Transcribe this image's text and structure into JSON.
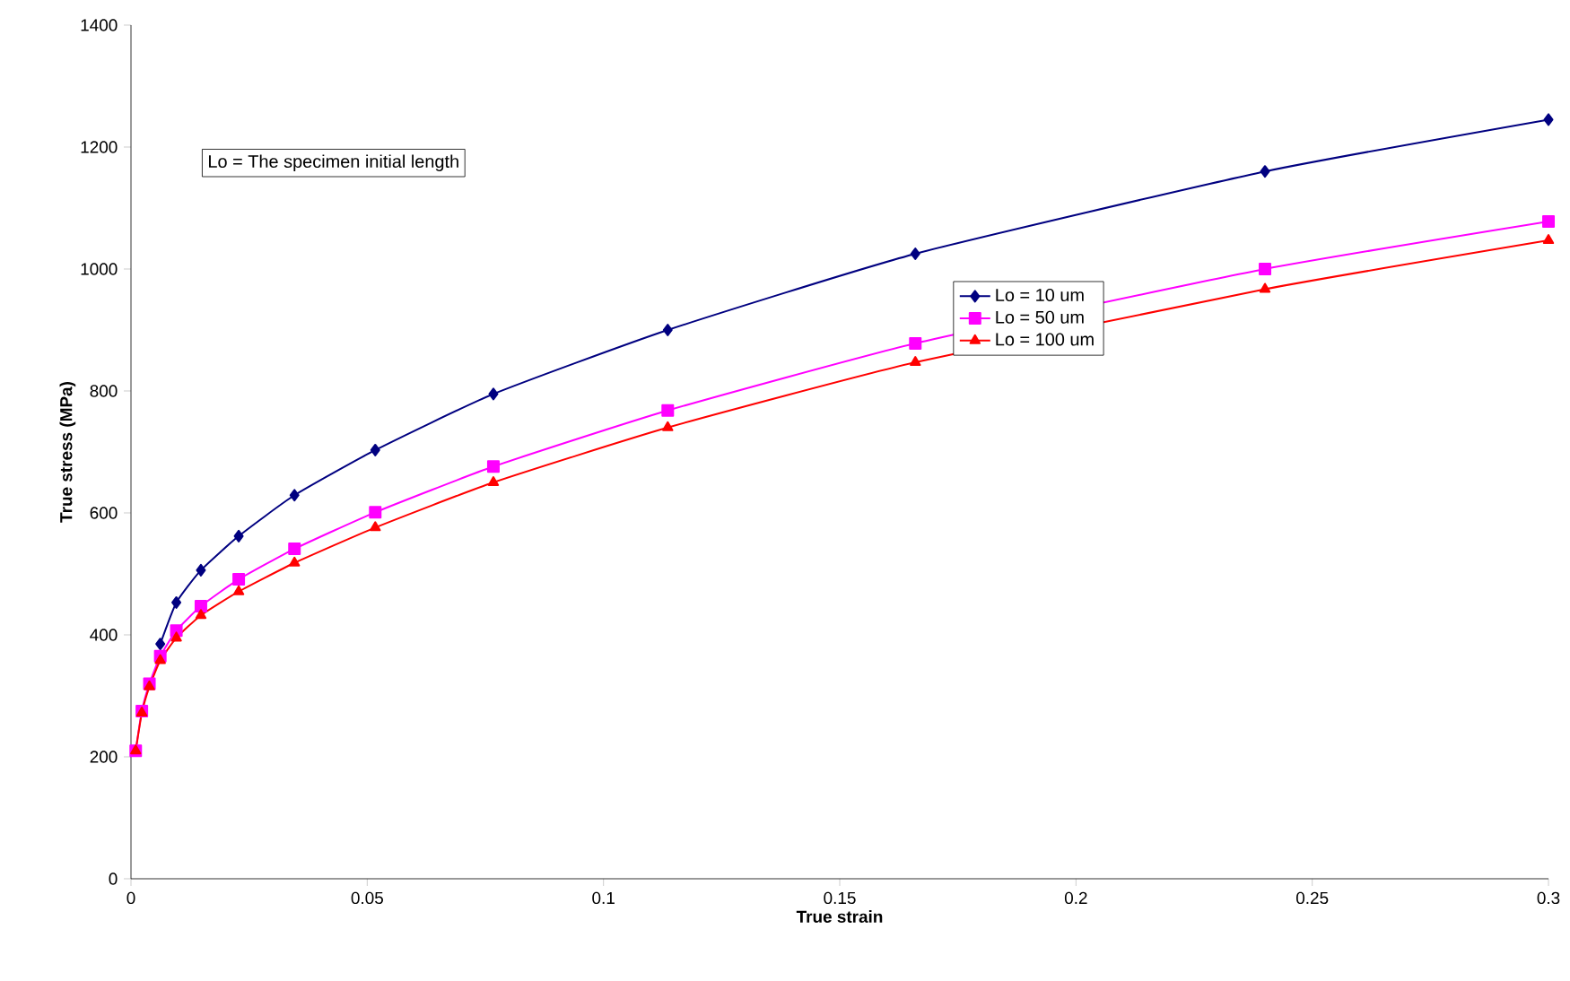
{
  "chart_data": {
    "type": "line",
    "xlabel": "True strain",
    "ylabel": "True stress (MPa)",
    "xlim": [
      0,
      0.3
    ],
    "ylim": [
      0,
      1400
    ],
    "xticks": [
      0,
      0.05,
      0.1,
      0.15,
      0.2,
      0.25,
      0.3
    ],
    "yticks": [
      0,
      200,
      400,
      600,
      800,
      1000,
      1200,
      1400
    ],
    "grid": false,
    "legend": "right",
    "annotations": [
      "Lo = The specimen initial length"
    ],
    "x": [
      0.001,
      0.0023,
      0.0039,
      0.0062,
      0.0096,
      0.0148,
      0.0228,
      0.0346,
      0.0517,
      0.0767,
      0.1136,
      0.166,
      0.24,
      0.3
    ],
    "series": [
      {
        "name": "Lo = 10 um",
        "color": "#000080",
        "marker": "diamond",
        "values": [
          null,
          null,
          null,
          385,
          453,
          506,
          562,
          629,
          703,
          795,
          900,
          1025,
          1160,
          1245
        ]
      },
      {
        "name": "Lo = 50 um",
        "color": "#ff00ff",
        "marker": "square",
        "values": [
          210,
          275,
          320,
          365,
          407,
          447,
          491,
          541,
          601,
          676,
          768,
          878,
          1000,
          1078
        ]
      },
      {
        "name": "Lo = 100 um",
        "color": "#ff0000",
        "marker": "triangle",
        "values": [
          210,
          272,
          315,
          358,
          395,
          432,
          471,
          518,
          576,
          650,
          740,
          847,
          967,
          1047
        ]
      }
    ]
  }
}
